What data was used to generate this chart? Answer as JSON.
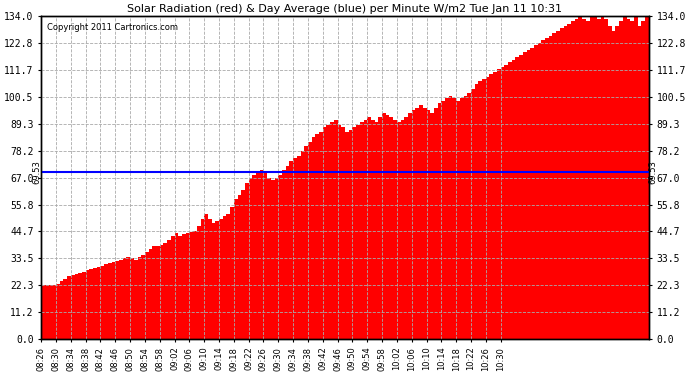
{
  "title": "Solar Radiation (red) & Day Average (blue) per Minute W/m2 Tue Jan 11 10:31",
  "copyright": "Copyright 2011 Cartronics.com",
  "avg_value": 69.53,
  "y_min": 0.0,
  "y_max": 134.0,
  "y_ticks": [
    0.0,
    11.2,
    22.3,
    33.5,
    44.7,
    55.8,
    67.0,
    78.2,
    89.3,
    100.5,
    111.7,
    122.8,
    134.0
  ],
  "bar_color": "#FF0000",
  "avg_line_color": "#0000FF",
  "bg_color": "#FFFFFF",
  "grid_color": "#AAAAAA",
  "x_tick_labels": [
    "08:26",
    "08:30",
    "08:34",
    "08:38",
    "08:42",
    "08:46",
    "08:50",
    "08:54",
    "08:58",
    "09:02",
    "09:06",
    "09:10",
    "09:14",
    "09:18",
    "09:22",
    "09:26",
    "09:30",
    "09:34",
    "09:38",
    "09:42",
    "09:46",
    "09:50",
    "09:54",
    "09:58",
    "10:02",
    "10:06",
    "10:10",
    "10:14",
    "10:18",
    "10:22",
    "10:26",
    "10:30"
  ],
  "radiation_values": [
    22.3,
    22.3,
    22.3,
    22.3,
    23.0,
    24.0,
    25.0,
    26.0,
    26.5,
    27.0,
    27.5,
    28.0,
    28.5,
    29.0,
    29.5,
    30.0,
    30.5,
    31.0,
    31.5,
    32.0,
    32.5,
    33.0,
    33.5,
    34.0,
    33.5,
    33.0,
    34.0,
    35.0,
    36.0,
    37.5,
    38.5,
    38.5,
    39.0,
    40.0,
    41.0,
    43.0,
    44.0,
    43.0,
    43.5,
    44.0,
    44.5,
    45.0,
    47.0,
    50.0,
    52.0,
    50.0,
    48.0,
    49.0,
    50.0,
    51.0,
    52.0,
    55.0,
    58.0,
    60.0,
    62.0,
    65.0,
    67.0,
    68.0,
    69.0,
    70.0,
    69.0,
    67.0,
    66.0,
    67.0,
    68.0,
    70.0,
    72.0,
    74.0,
    75.0,
    76.0,
    78.0,
    80.0,
    82.0,
    84.0,
    85.0,
    86.0,
    88.0,
    89.0,
    90.0,
    91.0,
    89.0,
    88.0,
    86.0,
    87.0,
    88.0,
    89.0,
    90.0,
    91.0,
    92.0,
    91.0,
    90.0,
    92.0,
    94.0,
    93.0,
    92.0,
    91.0,
    90.0,
    91.0,
    92.0,
    94.0,
    95.0,
    96.0,
    97.0,
    96.0,
    95.0,
    94.0,
    96.0,
    98.0,
    99.0,
    100.0,
    101.0,
    100.0,
    99.0,
    100.0,
    101.0,
    102.0,
    104.0,
    106.0,
    107.0,
    108.0,
    109.0,
    110.0,
    111.0,
    112.0,
    113.0,
    114.0,
    115.0,
    116.0,
    117.0,
    118.0,
    119.0,
    120.0,
    121.0,
    122.0,
    123.0,
    124.0,
    125.0,
    126.0,
    127.0,
    128.0,
    129.0,
    130.0,
    131.0,
    132.0,
    133.0,
    134.0,
    133.0,
    132.0,
    134.0,
    134.0,
    133.0,
    134.0,
    133.0,
    130.0,
    128.0,
    130.0,
    132.0,
    134.0,
    133.0,
    132.0,
    134.0,
    130.0,
    132.0,
    134.0
  ]
}
